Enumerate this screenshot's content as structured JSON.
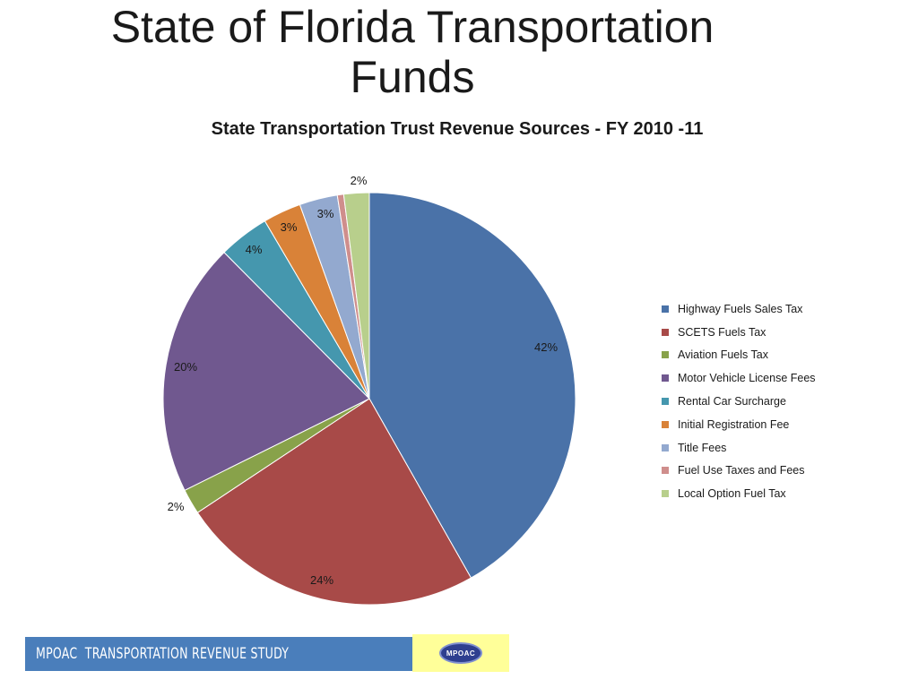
{
  "slide": {
    "title_line1": "State of Florida Transportation",
    "title_line2": "Funds"
  },
  "footer": {
    "study_label": "MPOAC  TRANSPORTATION REVENUE STUDY",
    "logo_text": "MPOAC"
  },
  "chart_data": {
    "type": "pie",
    "title": "State Transportation Trust Revenue Sources - FY 2010 -11",
    "legend_position": "right",
    "categories": [
      "Highway Fuels Sales Tax",
      "SCETS Fuels Tax",
      "Aviation Fuels Tax",
      "Motor Vehicle License Fees",
      "Rental Car Surcharge",
      "Initial Registration Fee",
      "Title Fees",
      "Fuel Use Taxes and Fees",
      "Local Option Fuel Tax"
    ],
    "values": [
      42,
      24,
      2,
      20,
      4,
      3,
      3,
      0.5,
      2
    ],
    "data_labels": [
      "42%",
      "24%",
      "2%",
      "20%",
      "4%",
      "3%",
      "3%",
      "",
      "2%"
    ],
    "colors": [
      "#4a72a8",
      "#a84a48",
      "#88a24a",
      "#70588f",
      "#4597ae",
      "#d98238",
      "#93a9cf",
      "#cf8e8c",
      "#b8cf8c"
    ]
  }
}
